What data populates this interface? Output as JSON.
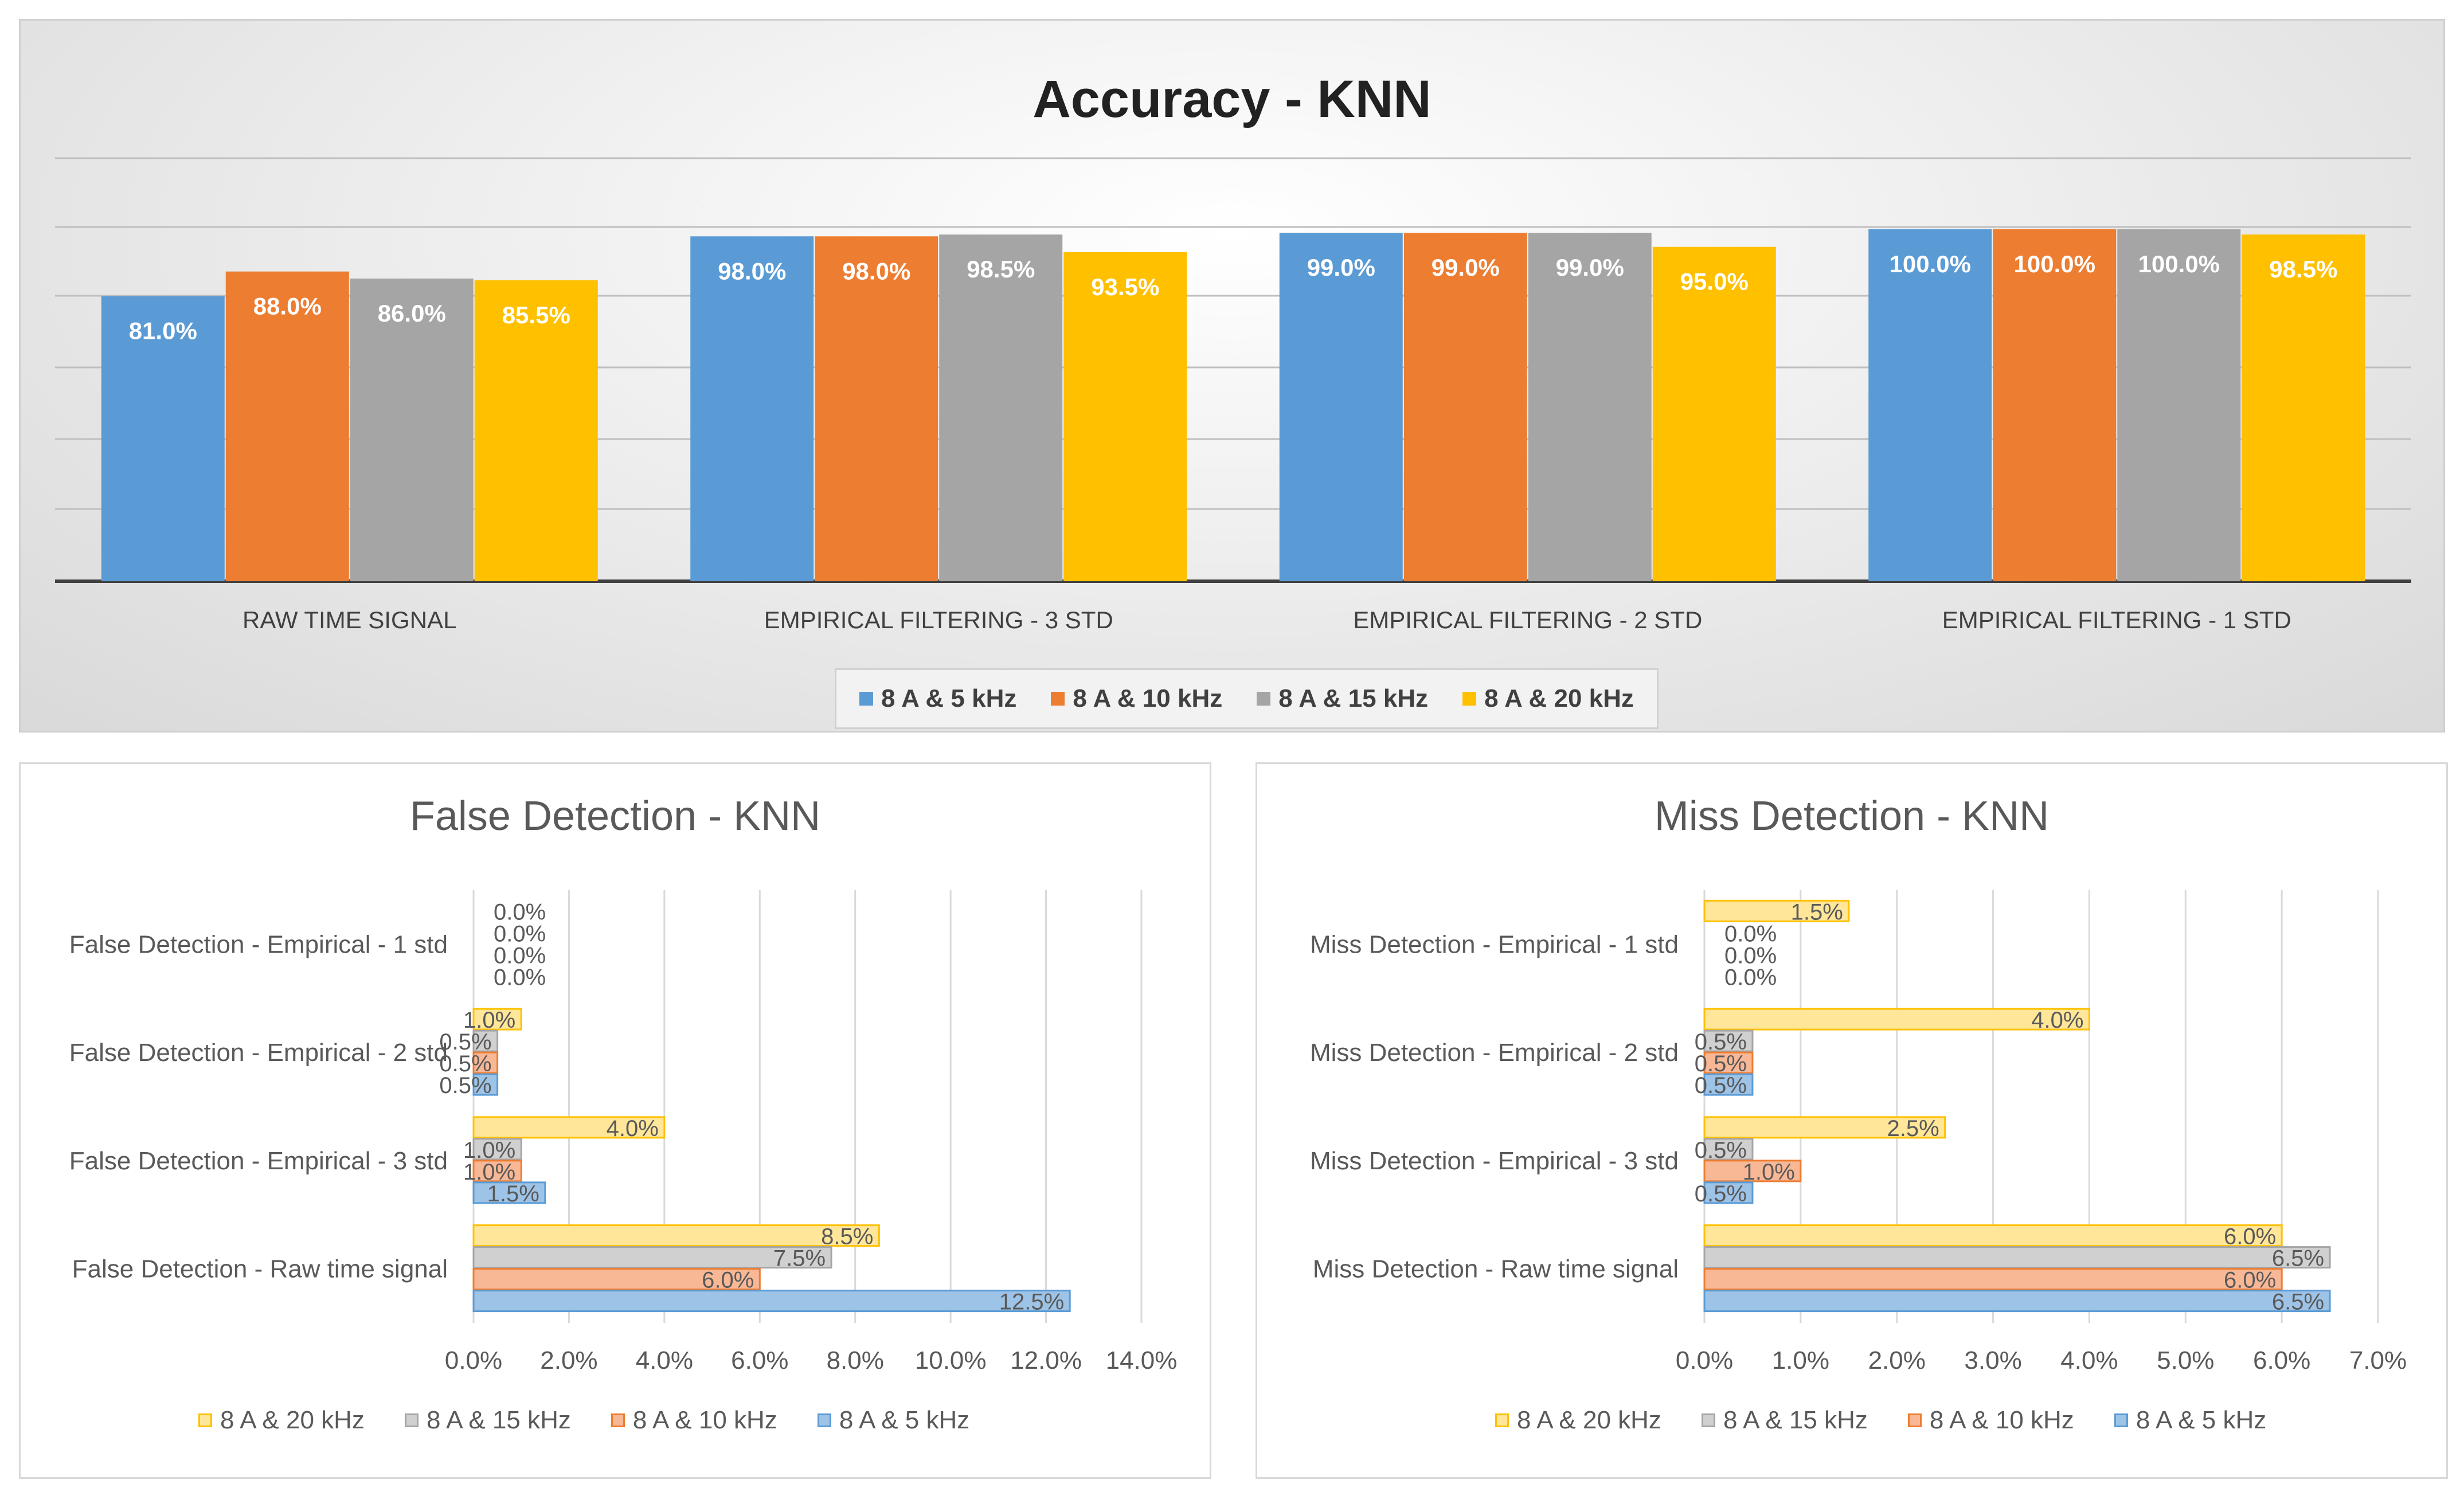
{
  "colors": {
    "s5": "#5b9bd5",
    "s10": "#ed7d31",
    "s15": "#a5a5a5",
    "s20": "#ffc000"
  },
  "legend_labels": [
    "8 A & 5 kHz",
    "8 A & 10 kHz",
    "8 A & 15 kHz",
    "8 A & 20 kHz"
  ],
  "chart_data": [
    {
      "type": "bar",
      "title": "Accuracy - KNN",
      "categories": [
        "RAW TIME SIGNAL",
        "EMPIRICAL FILTERING - 3 STD",
        "EMPIRICAL FILTERING - 2 STD",
        "EMPIRICAL FILTERING - 1 STD"
      ],
      "series": [
        {
          "name": "8 A & 5 kHz",
          "values": [
            81.0,
            98.0,
            99.0,
            100.0
          ],
          "labels": [
            "81.0%",
            "98.0%",
            "99.0%",
            "100.0%"
          ]
        },
        {
          "name": "8 A & 10 kHz",
          "values": [
            88.0,
            98.0,
            99.0,
            100.0
          ],
          "labels": [
            "88.0%",
            "98.0%",
            "99.0%",
            "100.0%"
          ]
        },
        {
          "name": "8 A & 15 kHz",
          "values": [
            86.0,
            98.5,
            99.0,
            100.0
          ],
          "labels": [
            "86.0%",
            "98.5%",
            "99.0%",
            "100.0%"
          ]
        },
        {
          "name": "8 A & 20 kHz",
          "values": [
            85.5,
            93.5,
            95.0,
            98.5
          ],
          "labels": [
            "85.5%",
            "93.5%",
            "95.0%",
            "98.5%"
          ]
        }
      ],
      "ylim": [
        0,
        100
      ],
      "grid": true,
      "legend": "bottom"
    },
    {
      "type": "bar",
      "orientation": "horizontal",
      "title": "False Detection  - KNN",
      "categories": [
        "False Detection - Raw time signal",
        "False Detection - Empirical - 3 std",
        "False Detection - Empirical - 2 std",
        "False Detection - Empirical - 1 std"
      ],
      "series": [
        {
          "name": "8 A & 5 kHz",
          "values": [
            12.5,
            1.5,
            0.5,
            0.0
          ],
          "labels": [
            "12.5%",
            "1.5%",
            "0.5%",
            "0.0%"
          ]
        },
        {
          "name": "8 A & 10 kHz",
          "values": [
            6.0,
            1.0,
            0.5,
            0.0
          ],
          "labels": [
            "6.0%",
            "1.0%",
            "0.5%",
            "0.0%"
          ]
        },
        {
          "name": "8 A & 15 kHz",
          "values": [
            7.5,
            1.0,
            0.5,
            0.0
          ],
          "labels": [
            "7.5%",
            "1.0%",
            "0.5%",
            "0.0%"
          ]
        },
        {
          "name": "8 A & 20 kHz",
          "values": [
            8.5,
            4.0,
            1.0,
            0.0
          ],
          "labels": [
            "8.5%",
            "4.0%",
            "1.0%",
            "0.0%"
          ]
        }
      ],
      "xlim": [
        0,
        14
      ],
      "ticks": [
        "0.0%",
        "2.0%",
        "4.0%",
        "6.0%",
        "8.0%",
        "10.0%",
        "12.0%",
        "14.0%"
      ],
      "grid": true,
      "legend": "bottom"
    },
    {
      "type": "bar",
      "orientation": "horizontal",
      "title": "Miss Detection  - KNN",
      "categories": [
        "Miss Detection - Raw time signal",
        "Miss Detection - Empirical - 3 std",
        "Miss Detection - Empirical - 2 std",
        "Miss Detection - Empirical - 1 std"
      ],
      "series": [
        {
          "name": "8 A & 5 kHz",
          "values": [
            6.5,
            0.5,
            0.5,
            0.0
          ],
          "labels": [
            "6.5%",
            "0.5%",
            "0.5%",
            "0.0%"
          ]
        },
        {
          "name": "8 A & 10 kHz",
          "values": [
            6.0,
            1.0,
            0.5,
            0.0
          ],
          "labels": [
            "6.0%",
            "1.0%",
            "0.5%",
            "0.0%"
          ]
        },
        {
          "name": "8 A & 15 kHz",
          "values": [
            6.5,
            0.5,
            0.5,
            0.0
          ],
          "labels": [
            "6.5%",
            "0.5%",
            "0.5%",
            "0.0%"
          ]
        },
        {
          "name": "8 A & 20 kHz",
          "values": [
            6.0,
            2.5,
            4.0,
            1.5
          ],
          "labels": [
            "6.0%",
            "2.5%",
            "4.0%",
            "1.5%"
          ]
        }
      ],
      "xlim": [
        0,
        7
      ],
      "ticks": [
        "0.0%",
        "1.0%",
        "2.0%",
        "3.0%",
        "4.0%",
        "5.0%",
        "6.0%",
        "7.0%"
      ],
      "grid": true,
      "legend": "bottom"
    }
  ]
}
